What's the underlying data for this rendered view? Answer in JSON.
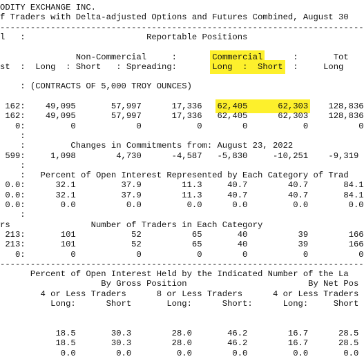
{
  "report": {
    "lines": [
      [
        {
          "text": "ODITY EXCHANGE INC."
        }
      ],
      [
        {
          "text": "f Traders with Delta-adjusted Options and Futures Combined, August 30"
        }
      ],
      [
        {
          "text": "------------------------------------------------------------------------"
        }
      ],
      [
        {
          "text": "l   :                        Reportable Positions"
        }
      ],
      [
        {
          "text": "               Non-Commercial     :       "
        },
        {
          "text": "Commercial",
          "highlight": true
        },
        {
          "text": "      :       Tot"
        }
      ],
      [
        {
          "text": "st  :  Long  : Short   : Spreading:       "
        },
        {
          "text": "Long  :  Short",
          "highlight": true
        },
        {
          "text": "  :     Long"
        }
      ],
      [
        {
          "text": "    : (CONTRACTS OF 5,000 TROY OUNCES)"
        }
      ],
      [
        {
          "text": " 162:    49,095       57,997      17,336   "
        },
        {
          "text": "62,405      62,303",
          "highlight": true
        },
        {
          "text": "    128,836"
        }
      ],
      [
        {
          "text": " 162:    49,095       57,997      17,336   62,405      62,303    128,836"
        }
      ],
      [
        {
          "text": "   0:         0            0           0        0           0          0"
        }
      ],
      [
        {
          "text": "    :"
        }
      ],
      [
        {
          "text": "    :         Changes in Commitments from: August 23, 2022"
        }
      ],
      [
        {
          "text": " 599:     1,098        4,730      -4,587   -5,830     -10,251    -9,319"
        }
      ],
      [
        {
          "text": "    :"
        }
      ],
      [
        {
          "text": "    :   Percent of Open Interest Represented by Each Category of Trad"
        }
      ],
      [
        {
          "text": " 0.0:      32.1         37.9        11.3     40.7        40.7       84.1"
        }
      ],
      [
        {
          "text": " 0.0:      32.1         37.9        11.3     40.7        40.7       84.1"
        }
      ],
      [
        {
          "text": " 0.0:       0.0          0.0         0.0      0.0         0.0        0.0"
        }
      ],
      [
        {
          "text": "    :"
        }
      ],
      [
        {
          "text": "rs                Number of Traders in Each Category"
        }
      ],
      [
        {
          "text": " 213:       101           52          65       40          39        166"
        }
      ],
      [
        {
          "text": " 213:       101           52          65       40          39        166"
        }
      ],
      [
        {
          "text": "   0:         0            0           0        0           0          0"
        }
      ],
      [
        {
          "text": "------------------------------------------------------------------------"
        }
      ],
      [
        {
          "text": "      Percent of Open Interest Held by the Indicated Number of the La"
        }
      ],
      [
        {
          "text": "                    By Gross Position                        By Net Pos"
        }
      ],
      [
        {
          "text": "        4 or Less Traders      8 or Less Traders      4 or Less Traders"
        }
      ],
      [
        {
          "text": "          Long:      Short       Long:      Short:      Long:     Short"
        }
      ],
      [
        {
          "text": "           18.5       30.3        28.0       46.2        16.7      28.5"
        }
      ],
      [
        {
          "text": "           18.5       30.3        28.0       46.2        16.7      28.5"
        }
      ],
      [
        {
          "text": "            0.0        0.0         0.0        0.0         0.0       0.0"
        }
      ]
    ]
  }
}
